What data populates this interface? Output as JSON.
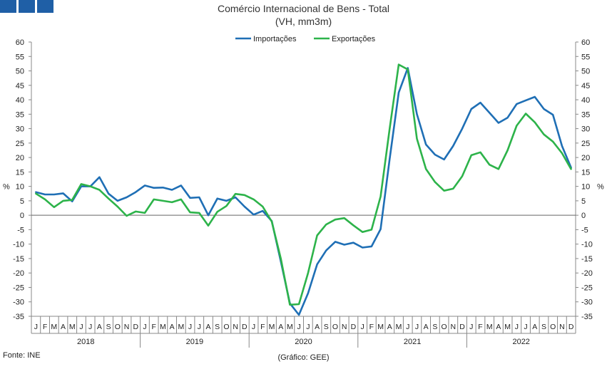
{
  "chart_data": {
    "type": "line",
    "title": "Comércio Internacional de Bens - Total",
    "subtitle": "(VH, mm3m)",
    "ylabel_left": "%",
    "ylabel_right": "%",
    "ylim": [
      -35,
      60
    ],
    "yticks": [
      60,
      55,
      50,
      45,
      40,
      35,
      30,
      25,
      20,
      15,
      10,
      5,
      0,
      -5,
      -10,
      -15,
      -20,
      -25,
      -30,
      -35
    ],
    "grid": false,
    "legend": "top-center",
    "month_labels": [
      "J",
      "F",
      "M",
      "A",
      "M",
      "J",
      "J",
      "A",
      "S",
      "O",
      "N",
      "D"
    ],
    "years": [
      "2018",
      "2019",
      "2020",
      "2021",
      "2022"
    ],
    "series": [
      {
        "name": "Importações",
        "color": "#1f6fb5",
        "values": [
          8,
          7.2,
          7.2,
          7.6,
          4.8,
          10,
          10,
          13.2,
          7.5,
          5,
          6.2,
          8,
          10.3,
          9.5,
          9.6,
          8.8,
          10.3,
          6,
          6.2,
          0,
          5.8,
          5,
          6.2,
          3,
          0.2,
          1.5,
          -2,
          -16,
          -30.5,
          -34.5,
          -27,
          -17,
          -12.2,
          -9.2,
          -10.2,
          -9.5,
          -11.2,
          -10.8,
          -4.8,
          19.5,
          42.5,
          51,
          35,
          24.5,
          21,
          19.3,
          24,
          30,
          36.8,
          39,
          35.5,
          32,
          33.8,
          38.5,
          39.8,
          41,
          36.8,
          34.8,
          24,
          16.5
        ]
      },
      {
        "name": "Exportações",
        "color": "#2db34a",
        "values": [
          7.5,
          5.5,
          2.8,
          5,
          5.3,
          10.8,
          10,
          8.8,
          5.8,
          3,
          -0.2,
          1.3,
          0.8,
          5.5,
          5,
          4.5,
          5.5,
          1,
          0.8,
          -3.6,
          1.2,
          3.2,
          7.4,
          7,
          5.5,
          3,
          -2.2,
          -15,
          -31,
          -30.8,
          -20,
          -7,
          -3.2,
          -1.5,
          -1,
          -3.5,
          -5.8,
          -5,
          6.5,
          30,
          52.2,
          50.5,
          26.5,
          16,
          11.5,
          8.5,
          9.2,
          13.5,
          20.8,
          21.8,
          17.5,
          16,
          22.5,
          31,
          35.2,
          32.2,
          28,
          25.5,
          21.5,
          16
        ]
      }
    ]
  },
  "footer": {
    "source": "Fonte: INE",
    "chart_credit": "(Gráfico: GEE)"
  }
}
